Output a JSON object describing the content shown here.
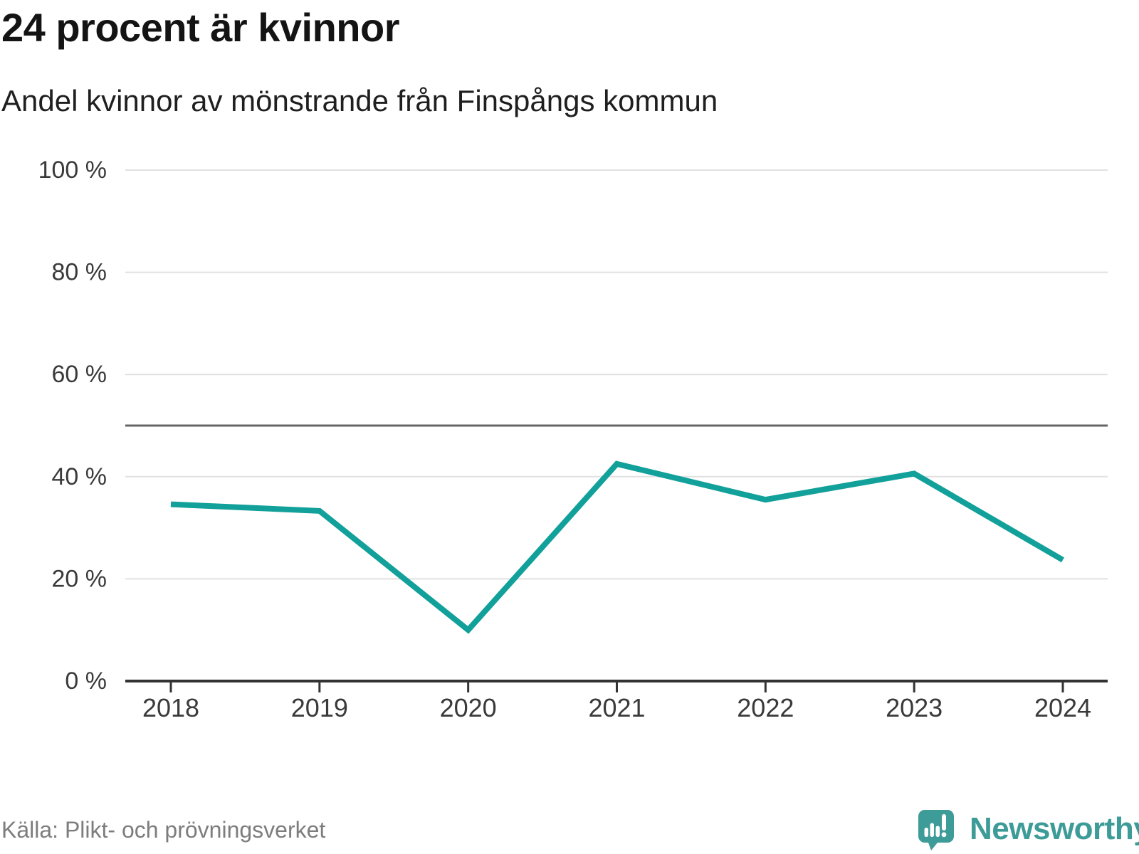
{
  "chart_data": {
    "type": "line",
    "title": "24 procent är kvinnor",
    "subtitle": "Andel kvinnor av mönstrande från Finspångs kommun",
    "categories": [
      "2018",
      "2019",
      "2020",
      "2021",
      "2022",
      "2023",
      "2024"
    ],
    "series": [
      {
        "name": "Andel kvinnor",
        "values": [
          34.6,
          33.3,
          10.0,
          42.5,
          35.5,
          40.6,
          23.7
        ]
      }
    ],
    "unit": "%",
    "ylim": [
      0,
      100
    ],
    "yticks": [
      0,
      20,
      40,
      60,
      80,
      100
    ],
    "ytick_labels": [
      "0 %",
      "20 %",
      "40 %",
      "60 %",
      "80 %",
      "100 %"
    ],
    "reference_line": 50,
    "grid": "horizontal",
    "legend": "none",
    "line_color": "#12a09a"
  },
  "footer": {
    "source": "Källa: Plikt- och prövningsverket",
    "brand": "Newsworthy"
  },
  "colors": {
    "accent": "#12a09a",
    "brand": "#3d9b98",
    "grid": "#e1e1e1",
    "reference_line": "#666666",
    "axis": "#333333",
    "tick_text": "#3a3a3a",
    "source_text": "#7d7d7d"
  }
}
